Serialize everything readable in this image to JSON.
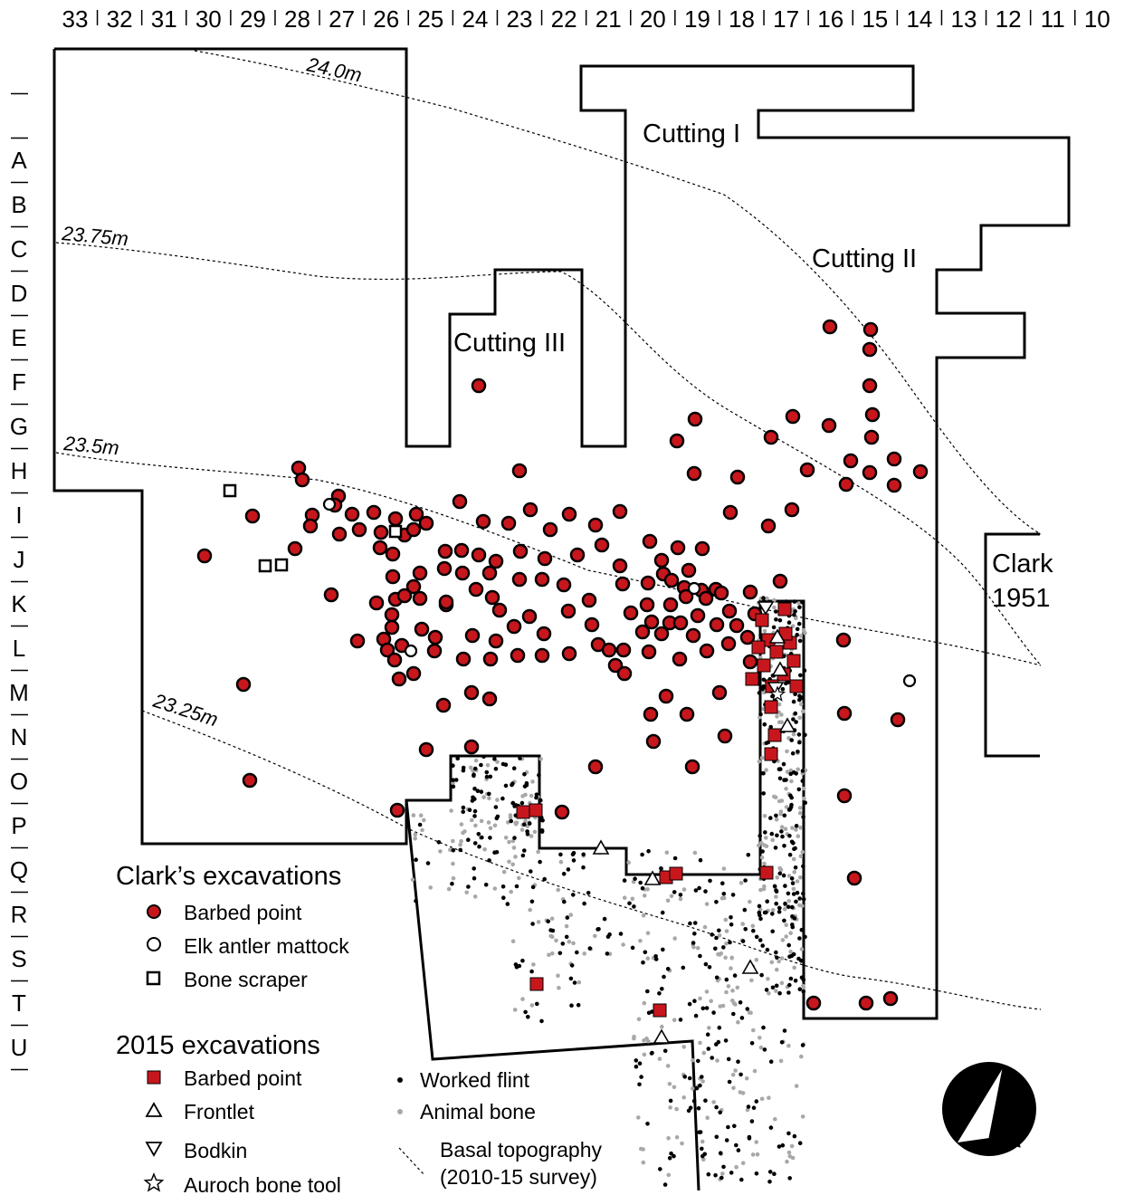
{
  "grid": {
    "columns": [
      "33",
      "32",
      "31",
      "30",
      "29",
      "28",
      "27",
      "26",
      "25",
      "24",
      "23",
      "22",
      "21",
      "20",
      "19",
      "18",
      "17",
      "16",
      "15",
      "14",
      "13",
      "12",
      "11",
      "10"
    ],
    "rows": [
      "A",
      "B",
      "C",
      "D",
      "E",
      "F",
      "G",
      "H",
      "I",
      "J",
      "K",
      "L",
      "M",
      "N",
      "O",
      "P",
      "Q",
      "R",
      "S",
      "T",
      "U"
    ]
  },
  "cuttings": {
    "cutting_1": "Cutting I",
    "cutting_2": "Cutting II",
    "cutting_3": "Cutting III",
    "clark_1951_line1": "Clark",
    "clark_1951_line2": "1951"
  },
  "contours": {
    "c24": "24.0m",
    "c2375": "23.75m",
    "c235": "23.5m",
    "c2325": "23.25m"
  },
  "legend": {
    "clark_heading": "Clark’s excavations",
    "clark_items": [
      "Barbed point",
      "Elk antler mattock",
      "Bone scraper"
    ],
    "ex2015_heading": "2015 excavations",
    "ex2015_items": [
      "Barbed point",
      "Frontlet",
      "Bodkin",
      "Auroch bone tool"
    ],
    "other_items": [
      "Worked flint",
      "Animal bone",
      "Basal topography",
      "(2010-15 survey)"
    ]
  },
  "colors": {
    "barbed_red": "#c8161d",
    "flint": "#000000",
    "bone": "#a8a8a8"
  },
  "icons": {
    "north_arrow": "north-arrow-icon"
  }
}
